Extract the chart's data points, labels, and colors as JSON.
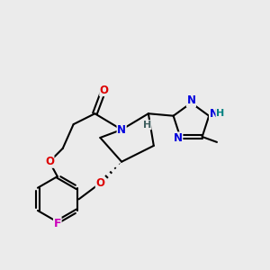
{
  "bg_color": "#ebebeb",
  "bond_color": "#000000",
  "bond_width": 1.5,
  "atom_colors": {
    "N": "#0000dd",
    "O": "#dd0000",
    "F": "#cc00bb",
    "C": "#000000",
    "H": "#008080"
  },
  "font_size": 8.5,
  "figsize": [
    3.0,
    3.0
  ],
  "dpi": 100
}
